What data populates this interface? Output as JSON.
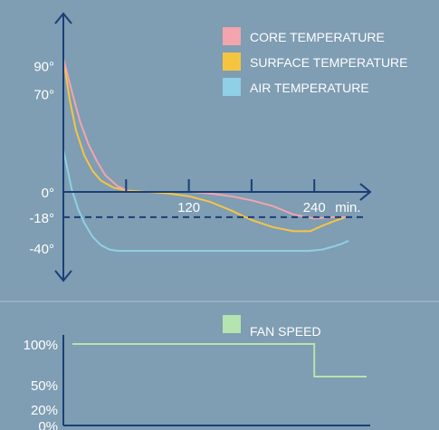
{
  "chart_data": [
    {
      "type": "line",
      "title": "",
      "xlabel": "",
      "ylabel": "",
      "x_unit": "min.",
      "xlim": [
        0,
        290
      ],
      "ylim": [
        -60,
        115
      ],
      "x_tick_labels": [
        {
          "value": 0,
          "label": ""
        },
        {
          "value": 60,
          "label": ""
        },
        {
          "value": 120,
          "label": "120"
        },
        {
          "value": 180,
          "label": ""
        },
        {
          "value": 240,
          "label": "240"
        }
      ],
      "y_tick_labels": [
        {
          "value": 90,
          "label": "90°"
        },
        {
          "value": 70,
          "label": "70°"
        },
        {
          "value": 0,
          "label": "0°"
        },
        {
          "value": -18,
          "label": "-18°"
        },
        {
          "value": -40,
          "label": "-40°"
        }
      ],
      "reference_line": {
        "value": -18,
        "style": "dashed"
      },
      "legend_position": "top-right",
      "series": [
        {
          "name": "CORE TEMPERATURE",
          "color": "#f4a4ac",
          "x": [
            0,
            8,
            16,
            24,
            32,
            40,
            52,
            64,
            80,
            100,
            120,
            140,
            160,
            180,
            200,
            220,
            240,
            258,
            270
          ],
          "y": [
            95,
            72,
            50,
            34,
            22,
            12,
            4,
            0,
            0,
            0,
            0,
            -1,
            -3,
            -6,
            -10,
            -16,
            -19,
            -18,
            -18
          ]
        },
        {
          "name": "SURFACE TEMPERATURE",
          "color": "#f5c542",
          "x": [
            0,
            6,
            12,
            20,
            28,
            36,
            48,
            60,
            80,
            100,
            120,
            140,
            160,
            180,
            200,
            220,
            236,
            248,
            262,
            270
          ],
          "y": [
            95,
            66,
            44,
            26,
            15,
            8,
            3,
            1,
            0,
            -1,
            -3,
            -7,
            -13,
            -20,
            -25,
            -28,
            -28,
            -24,
            -20,
            -18
          ]
        },
        {
          "name": "AIR TEMPERATURE",
          "color": "#8fd0e6",
          "x": [
            0,
            4,
            8,
            14,
            20,
            28,
            36,
            44,
            52,
            60,
            80,
            120,
            160,
            200,
            235,
            248,
            258,
            266,
            272
          ],
          "y": [
            30,
            16,
            2,
            -12,
            -22,
            -32,
            -38,
            -41,
            -42,
            -42,
            -42,
            -42,
            -42,
            -42,
            -42,
            -41,
            -39,
            -37,
            -35
          ]
        }
      ]
    },
    {
      "type": "line",
      "title": "",
      "xlabel": "",
      "ylabel": "",
      "xlim": [
        0,
        290
      ],
      "ylim": [
        0,
        115
      ],
      "y_tick_labels": [
        {
          "value": 100,
          "label": "100%"
        },
        {
          "value": 50,
          "label": "50%"
        },
        {
          "value": 20,
          "label": "20%"
        },
        {
          "value": 0,
          "label": "0%"
        }
      ],
      "legend_position": "top-right",
      "series": [
        {
          "name": "FAN SPEED",
          "color": "#b5e4b0",
          "x": [
            0,
            240,
            240,
            290
          ],
          "y": [
            100,
            100,
            60,
            60
          ]
        }
      ]
    }
  ],
  "separator_color": "#a9bfcf",
  "axis_color": "#1a3f78"
}
